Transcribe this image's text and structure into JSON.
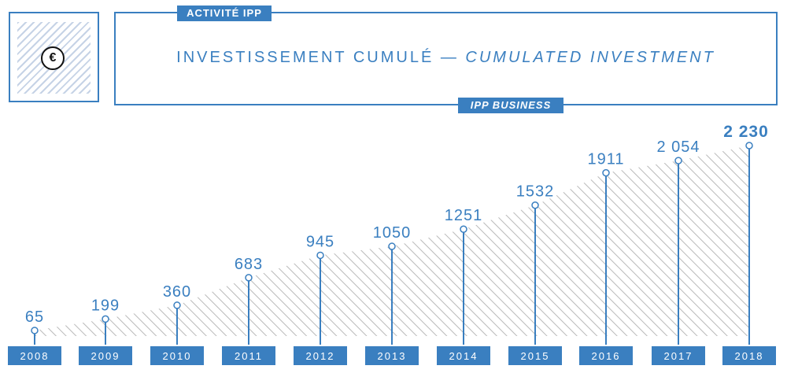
{
  "header": {
    "tag_top": "ACTIVITÉ IPP",
    "tag_bottom": "IPP BUSINESS",
    "title_fr": "INVESTISSEMENT CUMULÉ — ",
    "title_en": "CUMULATED INVESTMENT"
  },
  "icon": {
    "name": "euro-icon",
    "glyph": "€"
  },
  "colors": {
    "accent": "#3a7fc0",
    "hatch": "#b9b9b9",
    "label_bg": "#3a7fc0",
    "label_text": "#ffffff"
  },
  "chart_data": {
    "type": "area",
    "categories": [
      "2008",
      "2009",
      "2010",
      "2011",
      "2012",
      "2013",
      "2014",
      "2015",
      "2016",
      "2017",
      "2018"
    ],
    "values": [
      65,
      199,
      360,
      683,
      945,
      1050,
      1251,
      1532,
      1911,
      2054,
      2230
    ],
    "value_labels": [
      "65",
      "199",
      "360",
      "683",
      "945",
      "1050",
      "1251",
      "1532",
      "1911",
      "2 054",
      "2 230"
    ],
    "title": "INVESTISSEMENT CUMULÉ — CUMULATED INVESTMENT",
    "ylim": [
      0,
      2230
    ],
    "grid": false
  }
}
